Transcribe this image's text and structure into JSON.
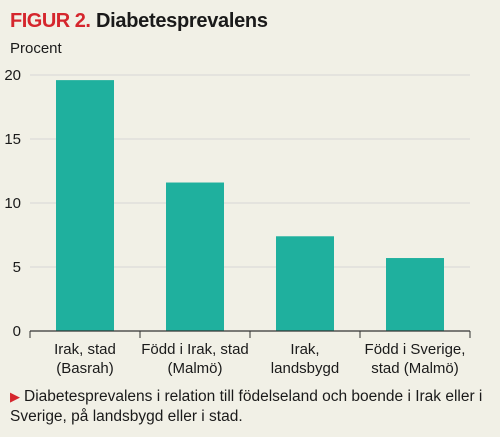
{
  "header": {
    "figure_label": "FIGUR 2.",
    "title": "Diabetesprevalens"
  },
  "caption": {
    "text": "Diabetesprevalens i relation till födelseland och boende i Irak eller i Sverige, på landsbygd eller i stad.",
    "marker_icon": "triangle-right-icon"
  },
  "colors": {
    "bar": "#1fb09e",
    "accent": "#d5262d",
    "grid": "#d6d6d6",
    "background": "#f1f0e6"
  },
  "chart_data": {
    "type": "bar",
    "title": "Diabetesprevalens",
    "ylabel": "Procent",
    "xlabel": "",
    "ylim": [
      0,
      20
    ],
    "yticks": [
      0,
      5,
      10,
      15,
      20
    ],
    "grid": true,
    "categories": [
      [
        "Irak, stad",
        "(Basrah)"
      ],
      [
        "Född i Irak, stad",
        "(Malmö)"
      ],
      [
        "Irak,",
        "landsbygd"
      ],
      [
        "Född i Sverige,",
        "stad (Malmö)"
      ]
    ],
    "values": [
      19.6,
      11.6,
      7.4,
      5.7
    ]
  }
}
